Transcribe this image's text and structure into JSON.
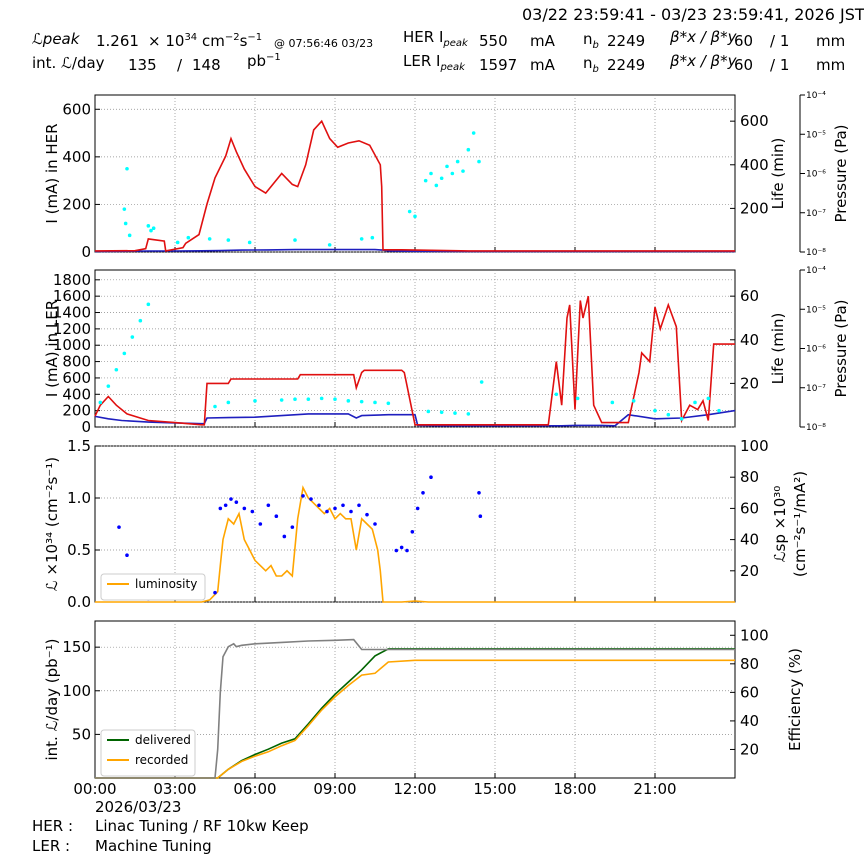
{
  "header": {
    "time_range": "03/22 23:59:41 - 03/23 23:59:41, 2026 JST",
    "lpeak_label": "ℒpeak",
    "lpeak_value": "1.261",
    "lpeak_unit_a": "× 10",
    "lpeak_unit_exp": "34",
    "lpeak_unit_b": "cm",
    "lpeak_unit_exp2": "−2",
    "lpeak_unit_c": "s",
    "lpeak_unit_exp3": "−1",
    "lpeak_time": "@ 07:56:46 03/23",
    "intl_label": "int. ℒ/day",
    "intl_rec": "135",
    "intl_slash": "/",
    "intl_del": "148",
    "intl_unit": "pb",
    "intl_unit_exp": "−1",
    "her_label": "HER I",
    "her_peak_sub": "peak",
    "her_current": "550",
    "her_unit": "mA",
    "ler_label": "LER I",
    "ler_peak_sub": "peak",
    "ler_current": "1597",
    "ler_unit": "mA",
    "nb_label": "n",
    "nb_sub": "b",
    "her_nb": "2249",
    "ler_nb": "2249",
    "beta_label": "β*x / β*y",
    "her_betax": "60",
    "her_betay": "/ 1",
    "ler_betax": "60",
    "ler_betay": "/ 1",
    "beta_unit": "mm"
  },
  "footer": {
    "her_label": "HER :",
    "her_status": "Linac Tuning / RF 10kw Keep",
    "ler_label": "LER :",
    "ler_status": "Machine Tuning"
  },
  "colors": {
    "current": "#1f1fbf",
    "lifetime": "#e01010",
    "pressure": "#00ffff",
    "spec": "#800080",
    "luminosity": "#ffa500",
    "lsp": "#0000ff",
    "delivered": "#006400",
    "recorded": "#ffa500",
    "efficiency": "#808080",
    "grid": "#888888"
  },
  "chart_data": [
    {
      "type": "line",
      "title": "",
      "ylabel": "I (mA) in HER",
      "y2label": "Life (min)",
      "y3label": "Pressure (Pa)",
      "xlim": [
        0,
        24
      ],
      "ylim": [
        0,
        660
      ],
      "y2lim": [
        0,
        720
      ],
      "y3lim_log": [
        -8,
        -4
      ],
      "yticks": [
        0,
        200,
        400,
        600
      ],
      "y2ticks": [
        200,
        400,
        600
      ],
      "y3ticks": [
        "10⁻⁸",
        "10⁻⁷",
        "10⁻⁶",
        "10⁻⁵",
        "10⁻⁴"
      ],
      "grid": true,
      "series": [
        {
          "role": "current",
          "x": [
            0,
            1,
            2,
            3,
            4,
            4.7,
            5.5,
            6.5,
            7.5,
            8.5,
            9.5,
            10.5,
            10.8,
            11,
            12,
            14,
            16,
            18,
            20,
            22,
            24
          ],
          "y": [
            2,
            3,
            4,
            4,
            5,
            6,
            8,
            9,
            10,
            10,
            10,
            10,
            8,
            4,
            3,
            2,
            2,
            2,
            2,
            2,
            2
          ]
        },
        {
          "role": "lifetime",
          "x": [
            0,
            1.5,
            1.9,
            2.0,
            2.6,
            2.65,
            3.3,
            3.4,
            3.9,
            4.2,
            4.5,
            4.9,
            5.1,
            5.3,
            5.6,
            6.0,
            6.4,
            6.6,
            7.0,
            7.4,
            7.6,
            7.9,
            8.2,
            8.5,
            8.8,
            9.1,
            9.5,
            9.9,
            10.3,
            10.7,
            10.75,
            10.8,
            11.5,
            14,
            18,
            24
          ],
          "y": [
            5,
            6,
            15,
            60,
            50,
            5,
            20,
            40,
            80,
            220,
            340,
            440,
            520,
            460,
            380,
            300,
            270,
            300,
            360,
            310,
            300,
            400,
            560,
            600,
            520,
            480,
            500,
            510,
            490,
            400,
            300,
            10,
            10,
            5,
            5,
            5
          ]
        },
        {
          "role": "pressure_scatter",
          "x": [
            1.1,
            1.15,
            1.2,
            1.3,
            2.0,
            2.1,
            2.2,
            3.1,
            3.5,
            4.3,
            5.0,
            5.8,
            7.5,
            8.8,
            10.0,
            10.4,
            11.8,
            12.0,
            12.4,
            12.6,
            12.8,
            13.0,
            13.2,
            13.4,
            13.6,
            13.8,
            14.0,
            14.2,
            14.4
          ],
          "y": [
            180,
            120,
            350,
            70,
            110,
            90,
            100,
            40,
            60,
            55,
            50,
            40,
            50,
            30,
            55,
            60,
            170,
            150,
            300,
            330,
            280,
            310,
            360,
            330,
            380,
            340,
            430,
            500,
            380
          ]
        }
      ]
    },
    {
      "type": "line",
      "title": "",
      "ylabel": "I (mA) in LER",
      "y2label": "Life (min)",
      "y3label": "Pressure (Pa)",
      "xlim": [
        0,
        24
      ],
      "ylim": [
        0,
        1920
      ],
      "y2lim": [
        0,
        72
      ],
      "y3lim_log": [
        -8,
        -4
      ],
      "yticks": [
        0,
        200,
        400,
        600,
        800,
        1000,
        1200,
        1400,
        1600,
        1800
      ],
      "y2ticks": [
        20,
        40,
        60
      ],
      "y3ticks": [
        "10⁻⁸",
        "10⁻⁷",
        "10⁻⁶",
        "10⁻⁵",
        "10⁻⁴"
      ],
      "grid": true,
      "series": [
        {
          "role": "current",
          "x": [
            0,
            0.5,
            1,
            2,
            3,
            4,
            4.1,
            4.2,
            5,
            6,
            7,
            8,
            9,
            9.5,
            9.8,
            10,
            11,
            12,
            12.1,
            13,
            14,
            15,
            16,
            17,
            17.5,
            18,
            19,
            19.5,
            20,
            21,
            22,
            23,
            24
          ],
          "y": [
            130,
            100,
            80,
            60,
            50,
            40,
            40,
            110,
            115,
            120,
            140,
            160,
            160,
            160,
            110,
            140,
            150,
            150,
            20,
            15,
            15,
            15,
            15,
            15,
            15,
            20,
            20,
            15,
            150,
            100,
            110,
            150,
            200
          ]
        },
        {
          "role": "lifetime",
          "x": [
            0,
            0.2,
            0.5,
            0.8,
            1.2,
            2,
            3,
            4,
            4.1,
            4.2,
            5,
            5.1,
            7.6,
            7.7,
            9.7,
            9.8,
            10,
            10.1,
            11.5,
            11.6,
            12,
            14,
            15,
            16,
            17,
            17.3,
            17.5,
            17.7,
            17.8,
            18,
            18.2,
            18.3,
            18.5,
            18.7,
            19,
            20,
            20.4,
            20.5,
            20.8,
            21,
            21.2,
            21.5,
            21.8,
            22,
            22.3,
            22.6,
            22.8,
            23,
            23.2,
            24
          ],
          "y": [
            5,
            10,
            14,
            10,
            6,
            3,
            2,
            1,
            1,
            20,
            20,
            22,
            22,
            24,
            24,
            18,
            25,
            26,
            26,
            25,
            1,
            1,
            1,
            1,
            1,
            30,
            10,
            50,
            56,
            8,
            58,
            50,
            60,
            10,
            2,
            2,
            25,
            34,
            30,
            55,
            45,
            56,
            46,
            3,
            10,
            8,
            12,
            3,
            38,
            38
          ]
        },
        {
          "role": "pressure_scatter",
          "x": [
            0.2,
            0.5,
            0.8,
            1.1,
            1.4,
            1.7,
            2.0,
            4.5,
            5,
            6,
            7,
            7.5,
            8,
            8.5,
            9,
            9.5,
            10,
            10.5,
            11,
            12.5,
            13,
            13.5,
            14,
            14.5,
            17.3,
            18.1,
            19.4,
            20.2,
            21,
            21.5,
            22,
            22.5,
            23,
            23.4
          ],
          "y": [
            300,
            500,
            700,
            900,
            1100,
            1300,
            1500,
            250,
            300,
            320,
            330,
            340,
            340,
            350,
            340,
            320,
            310,
            300,
            290,
            190,
            180,
            170,
            160,
            550,
            400,
            350,
            300,
            320,
            200,
            150,
            100,
            300,
            350,
            200
          ]
        }
      ]
    },
    {
      "type": "scatter",
      "title": "",
      "ylabel": "ℒ ×10³⁴ (cm⁻²s⁻¹)",
      "y2label": "ℒsp ×10³⁰ (cm⁻²s⁻¹/mA²)",
      "xlim": [
        0,
        24
      ],
      "ylim": [
        0,
        1.5
      ],
      "y2lim": [
        0,
        100
      ],
      "yticks": [
        0.0,
        0.5,
        1.0,
        1.5
      ],
      "y2ticks": [
        20,
        40,
        60,
        80,
        100
      ],
      "legend": "bottom-left",
      "grid": true,
      "series": [
        {
          "name": "luminosity",
          "role": "luminosity",
          "x": [
            0,
            4.0,
            4.3,
            4.6,
            4.7,
            4.8,
            5.0,
            5.2,
            5.4,
            5.6,
            5.8,
            6.0,
            6.2,
            6.4,
            6.6,
            6.8,
            7.0,
            7.2,
            7.4,
            7.6,
            7.8,
            8.0,
            8.2,
            8.4,
            8.6,
            8.8,
            9.0,
            9.2,
            9.4,
            9.6,
            9.8,
            10.0,
            10.2,
            10.4,
            10.6,
            10.7,
            10.8,
            11.5,
            12.0,
            12.5,
            24
          ],
          "y": [
            0,
            0,
            0.02,
            0.1,
            0.35,
            0.6,
            0.8,
            0.75,
            0.85,
            0.6,
            0.5,
            0.4,
            0.35,
            0.3,
            0.35,
            0.25,
            0.25,
            0.3,
            0.25,
            0.8,
            1.1,
            1.0,
            0.95,
            0.9,
            0.85,
            0.9,
            0.8,
            0.85,
            0.8,
            0.8,
            0.5,
            0.8,
            0.75,
            0.7,
            0.5,
            0.3,
            0,
            0,
            0.01,
            0,
            0
          ]
        },
        {
          "name": "",
          "role": "lsp",
          "x": [
            0.9,
            1.2,
            1.4,
            1.6,
            1.8,
            2.0,
            4.0,
            4.5,
            4.7,
            4.9,
            5.1,
            5.3,
            5.6,
            5.9,
            6.2,
            6.5,
            6.8,
            7.1,
            7.4,
            7.8,
            8.1,
            8.4,
            8.7,
            9.0,
            9.3,
            9.6,
            9.9,
            10.2,
            10.5,
            11.3,
            11.5,
            11.7,
            11.9,
            12.1,
            12.3,
            12.6,
            14.4,
            14.45
          ],
          "y": [
            48,
            30,
            5,
            4,
            3,
            2,
            3,
            6,
            60,
            62,
            66,
            64,
            60,
            58,
            50,
            62,
            55,
            42,
            48,
            68,
            66,
            62,
            58,
            60,
            62,
            58,
            62,
            56,
            50,
            33,
            35,
            33,
            45,
            60,
            70,
            80,
            70,
            55
          ]
        }
      ]
    },
    {
      "type": "line",
      "title": "",
      "ylabel": "int. ℒ/day (pb⁻¹)",
      "y2label": "Efficiency (%)",
      "xlabel": "2026/03/23",
      "xlim": [
        0,
        24
      ],
      "xticks": [
        "00:00",
        "03:00",
        "06:00",
        "09:00",
        "12:00",
        "15:00",
        "18:00",
        "21:00"
      ],
      "ylim": [
        0,
        180
      ],
      "y2lim": [
        0,
        110
      ],
      "yticks": [
        50,
        100,
        150
      ],
      "y2ticks": [
        20,
        40,
        60,
        80,
        100
      ],
      "legend": "bottom-left",
      "grid": true,
      "series": [
        {
          "name": "delivered",
          "role": "delivered",
          "x": [
            0,
            4.6,
            4.8,
            5.0,
            5.5,
            6.0,
            6.5,
            7.0,
            7.5,
            8.0,
            8.5,
            9.0,
            9.5,
            10.0,
            10.5,
            11.0,
            12,
            15,
            18,
            21,
            24
          ],
          "y": [
            0,
            0,
            5,
            10,
            20,
            27,
            33,
            40,
            45,
            62,
            80,
            96,
            110,
            124,
            140,
            148,
            148,
            148,
            148,
            148,
            148
          ]
        },
        {
          "name": "recorded",
          "role": "recorded",
          "x": [
            0,
            4.6,
            4.8,
            5.0,
            5.5,
            6.0,
            6.5,
            7.0,
            7.5,
            8.0,
            8.5,
            9.0,
            9.5,
            10.0,
            10.5,
            11.0,
            12,
            15,
            18,
            21,
            24
          ],
          "y": [
            0,
            0,
            5,
            10,
            19,
            25,
            30,
            37,
            43,
            60,
            78,
            93,
            106,
            118,
            120,
            133,
            135,
            135,
            135,
            135,
            135
          ]
        },
        {
          "name": "",
          "role": "efficiency",
          "x": [
            0,
            4.5,
            4.6,
            4.7,
            4.8,
            5.0,
            5.2,
            5.3,
            5.5,
            6.0,
            7.0,
            8.0,
            9.0,
            9.7,
            10.0,
            10.5,
            11.0,
            12,
            24
          ],
          "y": [
            0,
            0,
            20,
            60,
            85,
            92,
            94,
            92,
            93,
            94,
            95,
            96,
            96.5,
            97,
            90,
            90,
            90,
            90,
            90
          ]
        }
      ]
    }
  ]
}
